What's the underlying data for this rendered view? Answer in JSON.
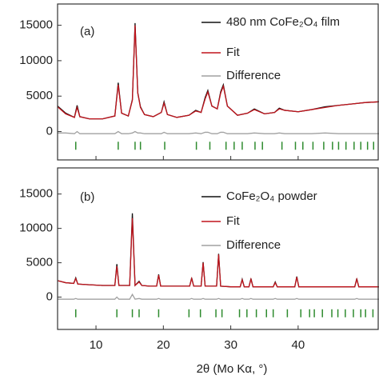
{
  "chart_data": [
    {
      "type": "line",
      "panel_label": "(a)",
      "x": [
        4.3,
        5.5,
        6.8,
        7.2,
        7.6,
        9,
        11,
        12.8,
        13.3,
        13.8,
        14.8,
        15.4,
        15.8,
        16.2,
        16.6,
        17.2,
        18.5,
        19.7,
        20.1,
        20.6,
        22,
        23.8,
        24.8,
        25.6,
        26.2,
        26.6,
        27.2,
        28.0,
        28.5,
        28.9,
        29.5,
        31,
        32.5,
        33.5,
        35,
        36.5,
        37.2,
        38,
        40,
        42,
        44,
        46,
        48,
        50,
        52
      ],
      "series": [
        {
          "name": "480 nm CoFe₂O₄ film",
          "color": "#111111",
          "values": [
            3600,
            2600,
            2000,
            3700,
            2100,
            1800,
            1800,
            2200,
            6900,
            2600,
            2200,
            4500,
            15300,
            5500,
            3500,
            2400,
            2100,
            2700,
            4200,
            2400,
            2000,
            2300,
            3000,
            2700,
            4800,
            5800,
            3600,
            3200,
            5600,
            6600,
            3600,
            2300,
            2600,
            3200,
            2500,
            2700,
            3300,
            3000,
            2800,
            3100,
            3500,
            3700,
            3900,
            4100,
            4200
          ]
        },
        {
          "name": "Fit",
          "color": "#c0141c",
          "values": [
            3500,
            2500,
            2000,
            3400,
            2100,
            1800,
            1800,
            2200,
            6600,
            2600,
            2200,
            4400,
            15000,
            5400,
            3400,
            2400,
            2100,
            2700,
            4000,
            2400,
            2000,
            2300,
            2900,
            2700,
            4600,
            5600,
            3600,
            3200,
            5400,
            6400,
            3600,
            2300,
            2600,
            3100,
            2500,
            2700,
            3200,
            3000,
            2800,
            3100,
            3400,
            3700,
            3900,
            4100,
            4200
          ]
        },
        {
          "name": "Difference",
          "color": "#a0a0a0",
          "values": [
            -200,
            -200,
            -300,
            0,
            -300,
            -300,
            -300,
            -300,
            0,
            -300,
            -300,
            -200,
            0,
            -200,
            -200,
            -300,
            -300,
            -300,
            -100,
            -300,
            -300,
            -300,
            -200,
            -300,
            -100,
            -100,
            -300,
            -300,
            -100,
            -100,
            -300,
            -300,
            -300,
            -200,
            -300,
            -300,
            -200,
            -300,
            -300,
            -300,
            -200,
            -300,
            -300,
            -300,
            -300
          ]
        }
      ],
      "reflections": {
        "color": "#2e8b2e",
        "x": [
          7.0,
          13.3,
          15.8,
          16.6,
          20.2,
          24.9,
          26.9,
          29.3,
          30.5,
          31.7,
          33.6,
          34.7,
          37.6,
          39.6,
          40.7,
          42.2,
          43.8,
          45.1,
          46.0,
          47.1,
          48.3,
          49.3,
          50.3,
          51.2
        ]
      },
      "xlim": [
        4.3,
        52
      ],
      "xticks": [
        10,
        20,
        30,
        40
      ],
      "ylim": [
        -4000,
        18000
      ],
      "yticks": [
        0,
        5000,
        10000,
        15000
      ]
    },
    {
      "type": "line",
      "panel_label": "(b)",
      "x_label": "2θ (Mo Kα, °)",
      "x": [
        4.3,
        5.5,
        6.7,
        7.0,
        7.3,
        9,
        11,
        12.8,
        13.1,
        13.4,
        15.0,
        15.4,
        15.8,
        16.4,
        16.8,
        18,
        19.0,
        19.3,
        19.6,
        22,
        23.9,
        24.2,
        24.5,
        25.6,
        25.9,
        26.2,
        27.9,
        28.2,
        28.5,
        30,
        31.4,
        31.7,
        32.0,
        32.7,
        33.0,
        33.3,
        35,
        36.3,
        36.6,
        36.9,
        38,
        39.5,
        39.8,
        40.1,
        43,
        46,
        48.4,
        48.7,
        49.0,
        52
      ],
      "series": [
        {
          "name": "CoFe₂O₄ powder",
          "color": "#111111",
          "values": [
            2400,
            2100,
            2000,
            2800,
            1900,
            1800,
            1700,
            1700,
            4800,
            1700,
            1700,
            12200,
            1700,
            2300,
            1700,
            1600,
            1600,
            3300,
            1600,
            1600,
            1600,
            2800,
            1600,
            1600,
            5100,
            1600,
            1600,
            6300,
            1600,
            1500,
            1500,
            2600,
            1500,
            1500,
            2700,
            1500,
            1500,
            1500,
            2200,
            1500,
            1500,
            1500,
            3000,
            1500,
            1500,
            1500,
            1500,
            2700,
            1500,
            1500
          ]
        },
        {
          "name": "Fit",
          "color": "#c0141c",
          "values": [
            2400,
            2100,
            2000,
            2700,
            1900,
            1800,
            1700,
            1700,
            4500,
            1700,
            1700,
            11500,
            1700,
            2200,
            1700,
            1600,
            1600,
            3200,
            1600,
            1600,
            1600,
            2700,
            1600,
            1600,
            5000,
            1600,
            1600,
            6200,
            1600,
            1500,
            1500,
            2500,
            1500,
            1500,
            2600,
            1500,
            1500,
            1500,
            2100,
            1500,
            1500,
            1500,
            2900,
            1500,
            1500,
            1500,
            1500,
            2600,
            1500,
            1500
          ]
        },
        {
          "name": "Difference",
          "color": "#a0a0a0",
          "values": [
            -300,
            -300,
            -300,
            -200,
            -300,
            -300,
            -300,
            -300,
            0,
            -300,
            -300,
            400,
            -300,
            -200,
            -300,
            -300,
            -300,
            -200,
            -300,
            -300,
            -300,
            -200,
            -300,
            -300,
            -200,
            -300,
            -300,
            -200,
            -300,
            -300,
            -300,
            -200,
            -300,
            -300,
            -200,
            -300,
            -300,
            -300,
            -200,
            -300,
            -300,
            -300,
            -200,
            -300,
            -300,
            -300,
            -300,
            -200,
            -300,
            -300
          ]
        }
      ],
      "reflections": {
        "color": "#2e8b2e",
        "x": [
          7.0,
          13.1,
          15.4,
          16.4,
          19.3,
          23.8,
          25.5,
          27.8,
          28.7,
          31.3,
          32.4,
          33.8,
          35.3,
          36.3,
          38.4,
          40.4,
          41.7,
          42.4,
          43.6,
          45.0,
          45.9,
          47.0,
          48.2,
          49.3,
          50.0,
          51.1
        ]
      },
      "xlim": [
        4.3,
        52
      ],
      "xticks": [
        10,
        20,
        30,
        40
      ],
      "ylim": [
        -4700,
        18800
      ],
      "yticks": [
        0,
        5000,
        10000,
        15000
      ]
    }
  ]
}
